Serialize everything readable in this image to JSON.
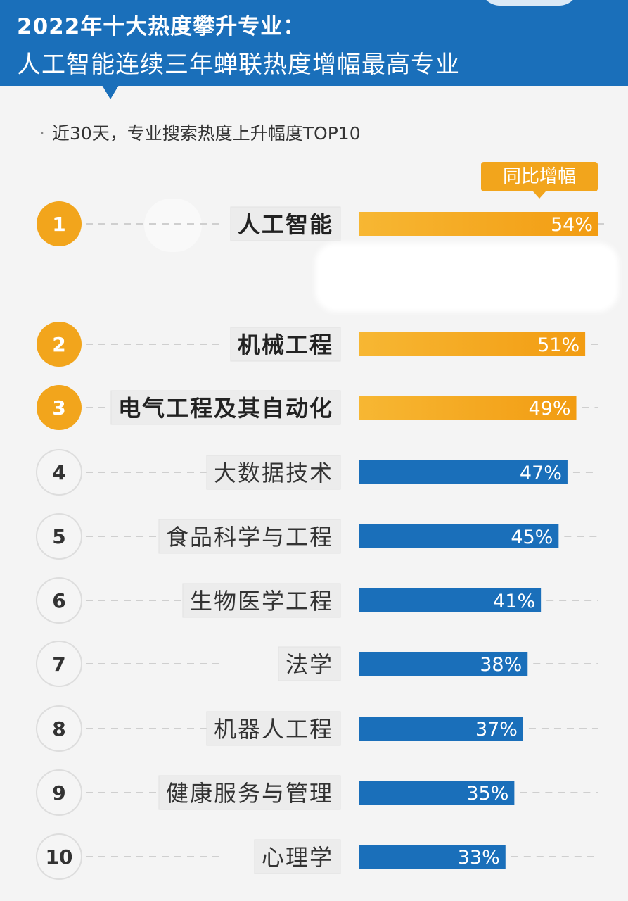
{
  "header": {
    "title_line1": "2022年十大热度攀升专业：",
    "title_line2": "人工智能连续三年蝉联热度增幅最高专业"
  },
  "subtitle": "近30天，专业搜索热度上升幅度TOP10",
  "subtitle_bullet": "·",
  "legend_label": "同比增幅",
  "colors": {
    "header": "#1a6fba",
    "top3": "#f2a51c",
    "others": "#1a6fba",
    "rank_plain_bg": "#f5f5f5",
    "label_bg": "#ececec"
  },
  "chart_data": {
    "type": "bar",
    "orientation": "horizontal",
    "categories": [
      "人工智能",
      "机械工程",
      "电气工程及其自动化",
      "大数据技术",
      "食品科学与工程",
      "生物医学工程",
      "法学",
      "机器人工程",
      "健康服务与管理",
      "心理学"
    ],
    "ranks": [
      "1",
      "2",
      "3",
      "4",
      "5",
      "6",
      "7",
      "8",
      "9",
      "10"
    ],
    "values": [
      54,
      51,
      49,
      47,
      45,
      41,
      38,
      37,
      35,
      33
    ],
    "value_labels": [
      "54%",
      "51%",
      "49%",
      "47%",
      "45%",
      "41%",
      "38%",
      "37%",
      "35%",
      "33%"
    ],
    "highlight_top": 3,
    "xlim": [
      0,
      54
    ],
    "grid": false
  }
}
